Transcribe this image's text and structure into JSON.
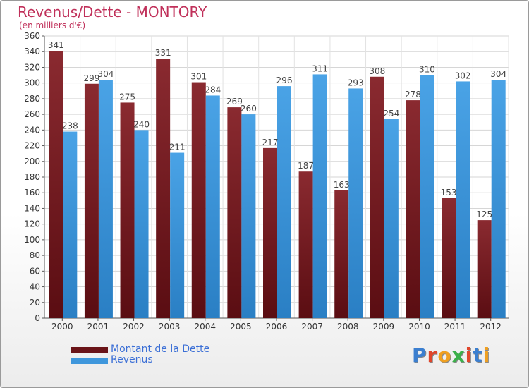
{
  "title": "Revenus/Dette - MONTORY",
  "subtitle": "(en milliers d'€)",
  "logo": "Proxiti",
  "colors": {
    "debt": "#7a1f24",
    "revenue": "#3f97dc",
    "title": "#c0305a",
    "legend_text": "#3b6fd6"
  },
  "legend": [
    {
      "label": "Montant de la Dette",
      "series": 0
    },
    {
      "label": "Revenus",
      "series": 1
    }
  ],
  "chart_data": {
    "type": "bar",
    "title": "Revenus/Dette - MONTORY",
    "subtitle": "(en milliers d'€)",
    "categories": [
      "2000",
      "2001",
      "2002",
      "2003",
      "2004",
      "2005",
      "2006",
      "2007",
      "2008",
      "2009",
      "2010",
      "2011",
      "2012"
    ],
    "series": [
      {
        "name": "Montant de la Dette",
        "values": [
          341,
          299,
          275,
          331,
          301,
          269,
          217,
          187,
          163,
          308,
          278,
          153,
          125
        ]
      },
      {
        "name": "Revenus",
        "values": [
          238,
          304,
          240,
          211,
          284,
          260,
          296,
          311,
          293,
          254,
          310,
          302,
          304
        ]
      }
    ],
    "ylim": [
      0,
      360
    ],
    "yticks": [
      0,
      20,
      40,
      60,
      80,
      100,
      120,
      140,
      160,
      180,
      200,
      220,
      240,
      260,
      280,
      300,
      320,
      340,
      360
    ],
    "grid": true,
    "legend_position": "bottom-left"
  }
}
